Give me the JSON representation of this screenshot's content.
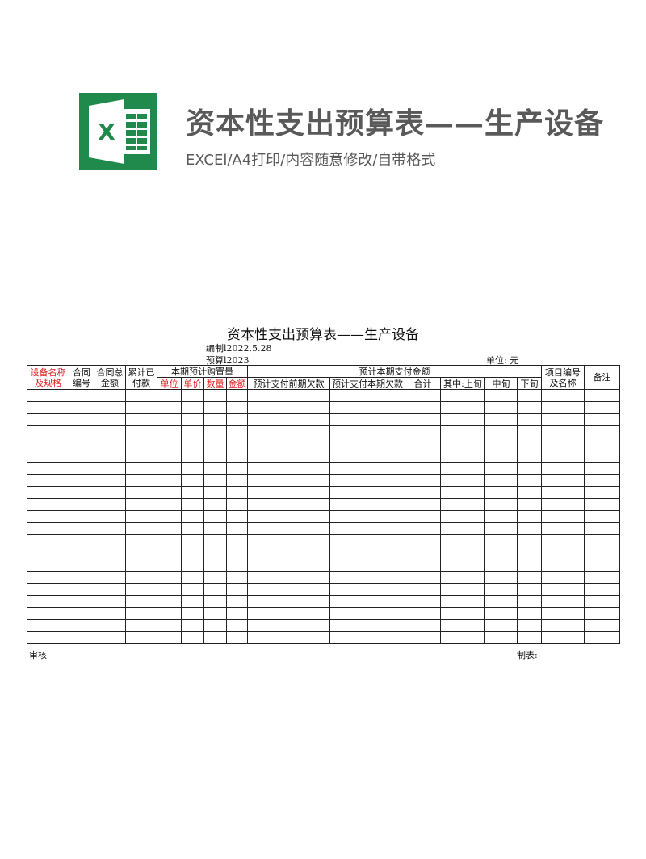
{
  "header": {
    "title": "资本性支出预算表——生产设备",
    "subtitle": "EXCEl/A4打印/内容随意修改/自带格式",
    "logo_letter": "X",
    "logo_color": "#1f8a4c"
  },
  "sheet": {
    "title": "资本性支出预算表——生产设备",
    "compiled": "编制l2022.5.28",
    "budget": "预算l2023",
    "unit": "单位: 元",
    "columns": {
      "equip": "设备名称及规格",
      "contract_no": "合同编号",
      "contract_total": "合同总金额",
      "paid": "累计已付款",
      "purchase_group": "本期预计购置量",
      "unit": "单位",
      "price": "单价",
      "qty": "数量",
      "amount": "金额",
      "pay_group": "预计本期支付金额",
      "prev_arrears": "预计支付前期欠款",
      "cur_arrears": "预计支付本期欠款",
      "total": "合计",
      "early": "其中:上旬",
      "mid": "中旬",
      "late": "下旬",
      "project": "项目编号及名称",
      "remark": "备注"
    },
    "row_count": 21,
    "footer_left": "审核",
    "footer_right": "制表:"
  }
}
